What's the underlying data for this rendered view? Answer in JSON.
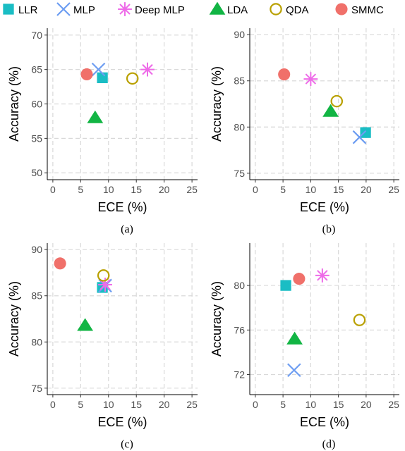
{
  "legend": [
    {
      "name": "LLR",
      "shape": "square",
      "color": "#1ABDC4"
    },
    {
      "name": "MLP",
      "shape": "x",
      "color": "#6D9DF2"
    },
    {
      "name": "Deep MLP",
      "shape": "asterisk",
      "color": "#EE6BE8"
    },
    {
      "name": "LDA",
      "shape": "triangle",
      "color": "#12B544"
    },
    {
      "name": "QDA",
      "shape": "circle-open",
      "color": "#B9A000"
    },
    {
      "name": "SMMC",
      "shape": "circle",
      "color": "#F0706A"
    }
  ],
  "chart_data": [
    {
      "type": "scatter",
      "caption": "(a)",
      "xlabel": "ECE (%)",
      "ylabel": "Accuracy (%)",
      "xlim": [
        -1,
        26
      ],
      "ylim": [
        49,
        71
      ],
      "xticks": [
        0,
        5,
        10,
        15,
        20,
        25
      ],
      "yticks": [
        50,
        55,
        60,
        65,
        70
      ],
      "points": [
        {
          "series": "LLR",
          "x": 8.9,
          "y": 63.8
        },
        {
          "series": "MLP",
          "x": 8.2,
          "y": 65.0
        },
        {
          "series": "Deep MLP",
          "x": 17.0,
          "y": 65.0
        },
        {
          "series": "LDA",
          "x": 7.6,
          "y": 58.0
        },
        {
          "series": "QDA",
          "x": 14.3,
          "y": 63.7
        },
        {
          "series": "SMMC",
          "x": 6.1,
          "y": 64.3
        }
      ]
    },
    {
      "type": "scatter",
      "caption": "(b)",
      "xlabel": "ECE (%)",
      "ylabel": "Accuracy (%)",
      "xlim": [
        -1,
        26
      ],
      "ylim": [
        74.3,
        90.7
      ],
      "xticks": [
        0,
        5,
        10,
        15,
        20,
        25
      ],
      "yticks": [
        75,
        80,
        85,
        90
      ],
      "points": [
        {
          "series": "LLR",
          "x": 19.9,
          "y": 79.4
        },
        {
          "series": "MLP",
          "x": 18.8,
          "y": 78.9
        },
        {
          "series": "Deep MLP",
          "x": 10.0,
          "y": 85.2
        },
        {
          "series": "LDA",
          "x": 13.6,
          "y": 81.7
        },
        {
          "series": "QDA",
          "x": 14.7,
          "y": 82.8
        },
        {
          "series": "SMMC",
          "x": 5.2,
          "y": 85.7
        }
      ]
    },
    {
      "type": "scatter",
      "caption": "(c)",
      "xlabel": "ECE (%)",
      "ylabel": "Accuracy (%)",
      "xlim": [
        -1,
        26
      ],
      "ylim": [
        74.3,
        90.7
      ],
      "xticks": [
        0,
        5,
        10,
        15,
        20,
        25
      ],
      "yticks": [
        75,
        80,
        85,
        90
      ],
      "points": [
        {
          "series": "LLR",
          "x": 8.9,
          "y": 85.9
        },
        {
          "series": "MLP",
          "x": 9.4,
          "y": 86.1
        },
        {
          "series": "Deep MLP",
          "x": 9.4,
          "y": 86.2
        },
        {
          "series": "LDA",
          "x": 5.8,
          "y": 81.8
        },
        {
          "series": "QDA",
          "x": 9.1,
          "y": 87.2
        },
        {
          "series": "SMMC",
          "x": 1.3,
          "y": 88.5
        }
      ]
    },
    {
      "type": "scatter",
      "caption": "(d)",
      "xlabel": "ECE (%)",
      "ylabel": "Accuracy (%)",
      "xlim": [
        -1,
        26
      ],
      "ylim": [
        70.2,
        83.8
      ],
      "xticks": [
        0,
        5,
        10,
        15,
        20,
        25
      ],
      "yticks": [
        72,
        76,
        80
      ],
      "points": [
        {
          "series": "LLR",
          "x": 5.5,
          "y": 80.0
        },
        {
          "series": "MLP",
          "x": 7.0,
          "y": 72.4
        },
        {
          "series": "Deep MLP",
          "x": 12.1,
          "y": 80.9
        },
        {
          "series": "LDA",
          "x": 7.1,
          "y": 75.2
        },
        {
          "series": "QDA",
          "x": 18.8,
          "y": 76.9
        },
        {
          "series": "SMMC",
          "x": 7.9,
          "y": 80.6
        }
      ]
    }
  ]
}
